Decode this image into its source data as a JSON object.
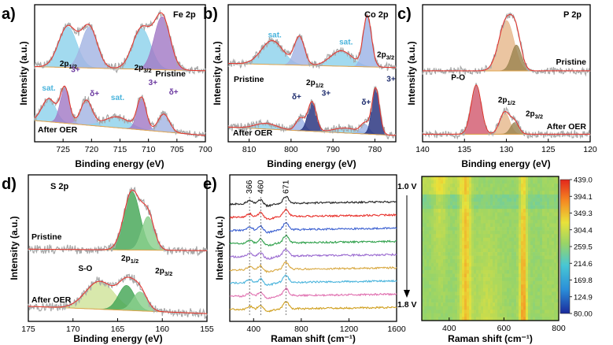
{
  "colors": {
    "gray": "#a8a8a8",
    "envelope": "#e8302a",
    "baseline": "#e3a64e",
    "sat": "#8ed2ec",
    "fe_dplus": "#a3b4e3",
    "fe_3plus": "#a27ac6",
    "co_3plus": "#24307c",
    "co_dplus": "#9cb3e6",
    "p_po": "#d25a6f",
    "p_2p12": "#e6b88c",
    "p_2p32": "#9b8450",
    "s_2p12": "#44a656",
    "s_2p32": "#8ad08c",
    "s_so": "#cfe39a",
    "annot_sat": "#4ab4dc",
    "annot_state": "#6c3aa0",
    "annot_co": "#1f2d6e"
  },
  "chart_data": [
    {
      "id": "a",
      "type": "line",
      "panel_label": "a)",
      "title": "Fe 2p",
      "xlabel": "Binding energy (eV)",
      "ylabel": "Intensity (a.u.)",
      "xlim": [
        730,
        700
      ],
      "xticks": [
        725,
        720,
        715,
        710,
        705,
        700
      ],
      "offset": 0.95,
      "ymax": 1.85,
      "series": [
        {
          "name": "Pristine",
          "label_text": "Pristine",
          "baseline": [
            0.06,
            0.0
          ],
          "peaks": [
            {
              "name": "pre-peak",
              "center": 724.2,
              "height": 0.6,
              "width": 1.6,
              "color": "#8ed2ec"
            },
            {
              "name": "2p1/2 main",
              "center": 720.4,
              "height": 0.6,
              "width": 1.4,
              "color": "#a3b4e3"
            },
            {
              "name": "sat",
              "center": 711.2,
              "height": 0.6,
              "width": 1.6,
              "color": "#8ed2ec"
            },
            {
              "name": "2p3/2 main",
              "center": 707.6,
              "height": 0.78,
              "width": 1.4,
              "color": "#a27ac6"
            }
          ]
        },
        {
          "name": "After OER",
          "label_text": "After OER",
          "baseline": [
            0.22,
            0.0
          ],
          "peaks": [
            {
              "name": "sat",
              "center": 727.5,
              "height": 0.34,
              "width": 1.2,
              "color": "#8ed2ec"
            },
            {
              "name": "3+ (2p1/2)",
              "center": 724.7,
              "height": 0.52,
              "width": 0.8,
              "color": "#a27ac6"
            },
            {
              "name": "δ+ (2p1/2)",
              "center": 720.9,
              "height": 0.36,
              "width": 1.0,
              "color": "#a3b4e3"
            },
            {
              "name": "sat",
              "center": 715.5,
              "height": 0.16,
              "width": 2.2,
              "color": "#8ed2ec"
            },
            {
              "name": "3+ (2p3/2)",
              "center": 711.2,
              "height": 0.46,
              "width": 0.8,
              "color": "#a27ac6"
            },
            {
              "name": "δ+ (2p3/2)",
              "center": 707.3,
              "height": 0.26,
              "width": 1.0,
              "color": "#a3b4e3"
            }
          ]
        }
      ],
      "annotations": [
        {
          "text": "2p1/2",
          "x": 725.6,
          "y": 1.02,
          "role": "orbital"
        },
        {
          "text": "3+",
          "x": 723.6,
          "y": 0.93,
          "role": "state"
        },
        {
          "text": "sat.",
          "x": 728.7,
          "y": 0.66,
          "role": "sat"
        },
        {
          "text": "δ+",
          "x": 720.3,
          "y": 0.58,
          "role": "state"
        },
        {
          "text": "sat.",
          "x": 716.6,
          "y": 0.52,
          "role": "sat"
        },
        {
          "text": "2p3/2",
          "x": 712.5,
          "y": 0.96,
          "role": "orbital"
        },
        {
          "text": "3+",
          "x": 710.0,
          "y": 0.74,
          "role": "state"
        },
        {
          "text": "δ+",
          "x": 706.4,
          "y": 0.6,
          "role": "state"
        }
      ]
    },
    {
      "id": "b",
      "type": "line",
      "panel_label": "b)",
      "title": "Co 2p",
      "xlabel": "Binding energy (eV)",
      "ylabel": "Intensity (a.u.)",
      "xlim": [
        815,
        775
      ],
      "xticks": [
        810,
        800,
        790,
        780
      ],
      "offset": 0.95,
      "ymax": 1.8,
      "label_side": "left",
      "series": [
        {
          "name": "Pristine",
          "label_text": "Pristine",
          "baseline": [
            0.08,
            0.02
          ],
          "peaks": [
            {
              "name": "sat",
              "center": 804.5,
              "height": 0.34,
              "width": 2.6,
              "color": "#8ed2ec"
            },
            {
              "name": "2p1/2",
              "center": 798.0,
              "height": 0.4,
              "width": 1.2,
              "color": "#a3b4e3"
            },
            {
              "name": "sat",
              "center": 788.0,
              "height": 0.22,
              "width": 2.6,
              "color": "#8ed2ec"
            },
            {
              "name": "2p3/2",
              "center": 781.8,
              "height": 0.72,
              "width": 1.0,
              "color": "#9cb3e6"
            }
          ]
        },
        {
          "name": "After OER",
          "label_text": "After OER",
          "baseline": [
            0.12,
            0.0
          ],
          "peaks": [
            {
              "name": "sat",
              "center": 806.0,
              "height": 0.08,
              "width": 2.6,
              "color": "#8ed2ec"
            },
            {
              "name": "δ+ (2p1/2)",
              "center": 797.8,
              "height": 0.18,
              "width": 1.0,
              "color": "#9cb3e6"
            },
            {
              "name": "3+ (2p1/2)",
              "center": 795.0,
              "height": 0.42,
              "width": 1.0,
              "color": "#24307c"
            },
            {
              "name": "sat",
              "center": 787.0,
              "height": 0.07,
              "width": 2.8,
              "color": "#8ed2ec"
            },
            {
              "name": "δ+ (2p3/2)",
              "center": 782.4,
              "height": 0.14,
              "width": 1.0,
              "color": "#9cb3e6"
            },
            {
              "name": "3+ (2p3/2)",
              "center": 779.8,
              "height": 0.66,
              "width": 0.9,
              "color": "#24307c"
            }
          ]
        }
      ],
      "annotations": [
        {
          "text": "sat.",
          "x": 805.5,
          "y": 1.4,
          "role": "sat"
        },
        {
          "text": "sat.",
          "x": 788.5,
          "y": 1.3,
          "role": "sat"
        },
        {
          "text": "2p3/2",
          "x": 779.5,
          "y": 1.12,
          "role": "orbital"
        },
        {
          "text": "3+",
          "x": 777.2,
          "y": 0.77,
          "role": "co"
        },
        {
          "text": "2p1/2",
          "x": 796.4,
          "y": 0.72,
          "role": "orbital"
        },
        {
          "text": "3+",
          "x": 792.7,
          "y": 0.57,
          "role": "co"
        },
        {
          "text": "δ+",
          "x": 799.8,
          "y": 0.52,
          "role": "co"
        },
        {
          "text": "δ+",
          "x": 783.2,
          "y": 0.44,
          "role": "co"
        }
      ]
    },
    {
      "id": "c",
      "type": "line",
      "panel_label": "c)",
      "title": "P 2p",
      "xlabel": "Binding energy (eV)",
      "ylabel": "Intensity (a.u.)",
      "xlim": [
        140,
        120
      ],
      "xticks": [
        140,
        135,
        130,
        125,
        120
      ],
      "offset": 0.95,
      "ymax": 1.95,
      "series": [
        {
          "name": "Pristine",
          "label_text": "Pristine",
          "baseline": [
            0.05,
            0.05
          ],
          "peaks": [
            {
              "name": "2p1/2",
              "center": 130.0,
              "height": 0.78,
              "width": 0.9,
              "color": "#e6b88c"
            },
            {
              "name": "2p3/2",
              "center": 128.8,
              "height": 0.4,
              "width": 0.6,
              "color": "#9b8450"
            }
          ]
        },
        {
          "name": "After OER",
          "label_text": "After OER",
          "baseline": [
            0.02,
            0.02
          ],
          "peaks": [
            {
              "name": "P-O",
              "center": 133.6,
              "height": 0.76,
              "width": 0.6,
              "color": "#d25a6f"
            },
            {
              "name": "2p1/2",
              "center": 130.2,
              "height": 0.34,
              "width": 0.6,
              "color": "#e6b88c"
            },
            {
              "name": "2p3/2",
              "center": 129.0,
              "height": 0.18,
              "width": 0.5,
              "color": "#9b8450"
            }
          ]
        }
      ],
      "annotations": [
        {
          "text": "P-O",
          "x": 136.6,
          "y": 0.86,
          "role": "orbital"
        },
        {
          "text": "2p1/2",
          "x": 131.0,
          "y": 0.51,
          "role": "orbital"
        },
        {
          "text": "2p3/2",
          "x": 127.7,
          "y": 0.3,
          "role": "orbital"
        }
      ]
    },
    {
      "id": "d",
      "type": "line",
      "panel_label": "d)",
      "title": "S 2p",
      "xlabel": "Binding energy (eV)",
      "ylabel": "Intensity (a.u.)",
      "xlim": [
        175,
        155
      ],
      "xticks": [
        175,
        170,
        165,
        160,
        155
      ],
      "offset": 0.8,
      "ymax": 1.85,
      "series": [
        {
          "name": "Pristine",
          "label_text": "Pristine",
          "baseline": [
            0.1,
            0.08
          ],
          "peaks": [
            {
              "name": "2p1/2",
              "center": 163.4,
              "height": 0.8,
              "width": 0.9,
              "color": "#44a656"
            },
            {
              "name": "2p3/2",
              "center": 161.6,
              "height": 0.46,
              "width": 0.7,
              "color": "#8ad08c"
            }
          ]
        },
        {
          "name": "After OER",
          "label_text": "After OER",
          "baseline": [
            0.12,
            0.02
          ],
          "peaks": [
            {
              "name": "S-O",
              "center": 167.0,
              "height": 0.38,
              "width": 1.6,
              "color": "#cfe39a"
            },
            {
              "name": "2p1/2",
              "center": 164.0,
              "height": 0.34,
              "width": 0.9,
              "color": "#44a656"
            },
            {
              "name": "2p3/2",
              "center": 162.5,
              "height": 0.26,
              "width": 0.8,
              "color": "#8ad08c"
            }
          ]
        }
      ],
      "annotations": [
        {
          "text": "S-O",
          "x": 169.4,
          "y": 0.6,
          "role": "orbital"
        },
        {
          "text": "2p1/2",
          "x": 164.6,
          "y": 0.74,
          "role": "orbital"
        },
        {
          "text": "2p3/2",
          "x": 160.8,
          "y": 0.57,
          "role": "orbital"
        }
      ]
    },
    {
      "id": "e",
      "type": "line",
      "panel_label": "e)",
      "xlabel": "Raman shift (cm⁻¹)",
      "ylabel": "Intenaity (a.u.)",
      "xlim": [
        200,
        1600
      ],
      "xticks": [
        400,
        800,
        1200,
        1600
      ],
      "peak_labels": [
        "366",
        "460",
        "671"
      ],
      "peak_positions": [
        366,
        460,
        671
      ],
      "voltage_top": "1.0 V",
      "voltage_bottom": "1.8 V",
      "series_colors": [
        "#222222",
        "#e8302a",
        "#3a5fd0",
        "#2ea04a",
        "#9a6ad0",
        "#d8a840",
        "#4ab4dc",
        "#e070b0",
        "#d0a020"
      ]
    },
    {
      "id": "f",
      "type": "heatmap",
      "xlabel": "Raman shift (cm⁻¹)",
      "xlim": [
        300,
        800
      ],
      "xticks": [
        400,
        600,
        800
      ],
      "colorbar_ticks": [
        "439.0",
        "394.1",
        "349.3",
        "304.4",
        "259.5",
        "214.6",
        "169.8",
        "124.9",
        "80.00"
      ],
      "colorbar_range": [
        80.0,
        439.0
      ],
      "rows": 7
    }
  ]
}
